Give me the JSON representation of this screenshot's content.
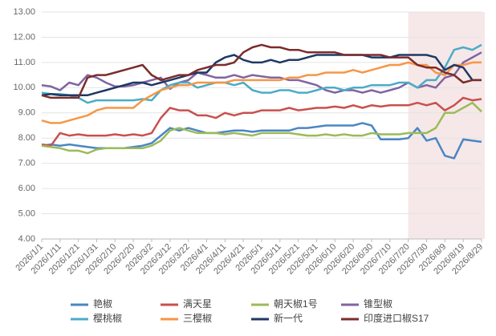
{
  "chart_data": {
    "type": "line",
    "categories": [
      "2026/1/1",
      null,
      "2026/1/11",
      null,
      "2026/1/21",
      null,
      "2026/1/31",
      null,
      "2026/2/10",
      null,
      "2026/2/20",
      null,
      "2026/3/2",
      null,
      "2026/3/12",
      null,
      "2026/3/22",
      null,
      "2026/4/1",
      null,
      "2026/4/11",
      null,
      "2026/4/21",
      null,
      "2026/5/1",
      null,
      "2026/5/11",
      null,
      "2026/5/21",
      null,
      "2026/5/31",
      null,
      "2026/6/10",
      null,
      "2026/6/20",
      null,
      "2026/6/30",
      null,
      "2026/7/10",
      null,
      "2026/7/20",
      null,
      "2026/7/30",
      null,
      "2026/8/9",
      null,
      "2026/8/19",
      null,
      "2026/8/29"
    ],
    "ylim": [
      4,
      13
    ],
    "yticks": [
      {
        "value": 4,
        "label": "4.00"
      },
      {
        "value": 5,
        "label": "5.00"
      },
      {
        "value": 6,
        "label": "6.00"
      },
      {
        "value": 7,
        "label": "7.00"
      },
      {
        "value": 8,
        "label": "8.00"
      },
      {
        "value": 9,
        "label": "9.00"
      },
      {
        "value": 10,
        "label": "10.00"
      },
      {
        "value": 11,
        "label": "11.00"
      },
      {
        "value": 12,
        "label": "12.00"
      },
      {
        "value": 13,
        "label": "13.00"
      }
    ],
    "grid": true,
    "legend": "bottom",
    "highlight_from": "2026/7/20",
    "highlight_color": "#f2dede",
    "series": [
      {
        "name": "艳椒",
        "color": "#4a86c5",
        "values": [
          7.7,
          7.75,
          7.7,
          7.75,
          7.7,
          7.65,
          7.6,
          7.6,
          7.6,
          7.6,
          7.65,
          7.7,
          7.8,
          8.1,
          8.4,
          8.3,
          8.4,
          8.3,
          8.2,
          8.2,
          8.25,
          8.3,
          8.3,
          8.25,
          8.3,
          8.3,
          8.3,
          8.3,
          8.4,
          8.4,
          8.45,
          8.5,
          8.5,
          8.5,
          8.5,
          8.6,
          8.5,
          7.95,
          7.95,
          7.95,
          8.0,
          8.4,
          7.9,
          8.0,
          7.3,
          7.2,
          7.95,
          7.9,
          7.85
        ]
      },
      {
        "name": "满天星",
        "color": "#c8504f",
        "values": [
          7.75,
          7.7,
          8.2,
          8.1,
          8.15,
          8.1,
          8.1,
          8.1,
          8.15,
          8.1,
          8.15,
          8.1,
          8.2,
          8.8,
          9.2,
          9.1,
          9.1,
          8.9,
          8.9,
          8.8,
          9.0,
          8.9,
          9.0,
          9.0,
          9.1,
          9.1,
          9.1,
          9.2,
          9.1,
          9.15,
          9.2,
          9.2,
          9.25,
          9.2,
          9.3,
          9.2,
          9.3,
          9.25,
          9.3,
          9.3,
          9.3,
          9.4,
          9.3,
          9.4,
          9.1,
          9.3,
          9.6,
          9.5,
          9.55
        ]
      },
      {
        "name": "朝天椒1号",
        "color": "#9bbb59",
        "values": [
          7.7,
          7.65,
          7.6,
          7.5,
          7.5,
          7.4,
          7.55,
          7.6,
          7.6,
          7.6,
          7.6,
          7.6,
          7.7,
          7.9,
          8.3,
          8.4,
          8.3,
          8.2,
          8.2,
          8.2,
          8.15,
          8.2,
          8.15,
          8.1,
          8.2,
          8.2,
          8.2,
          8.2,
          8.15,
          8.1,
          8.1,
          8.15,
          8.1,
          8.15,
          8.1,
          8.1,
          8.2,
          8.15,
          8.15,
          8.15,
          8.2,
          8.2,
          8.2,
          8.4,
          9.0,
          9.0,
          9.2,
          9.4,
          9.05
        ]
      },
      {
        "name": "锥型椒",
        "color": "#8064a2",
        "values": [
          10.1,
          10.05,
          9.9,
          10.2,
          10.1,
          10.5,
          10.4,
          10.2,
          10.05,
          10.05,
          10.1,
          10.2,
          10.3,
          10.4,
          9.95,
          10.2,
          10.3,
          10.6,
          10.5,
          10.4,
          10.4,
          10.5,
          10.4,
          10.5,
          10.45,
          10.4,
          10.4,
          10.3,
          10.3,
          10.2,
          10.1,
          9.9,
          9.8,
          9.9,
          9.9,
          9.8,
          9.9,
          9.8,
          9.9,
          10.0,
          10.2,
          10.0,
          10.1,
          10.0,
          10.4,
          10.5,
          11.0,
          11.2,
          11.4
        ]
      },
      {
        "name": "樱桃椒",
        "color": "#4bacc6",
        "values": [
          9.8,
          9.75,
          9.75,
          9.7,
          9.6,
          9.4,
          9.5,
          9.5,
          9.5,
          9.5,
          9.5,
          9.55,
          9.5,
          9.9,
          10.1,
          10.2,
          10.2,
          10.0,
          10.1,
          10.2,
          10.2,
          10.1,
          10.2,
          9.9,
          9.8,
          9.8,
          9.9,
          9.9,
          9.8,
          9.8,
          9.9,
          10.0,
          10.0,
          9.9,
          10.0,
          10.0,
          10.1,
          10.1,
          10.1,
          10.2,
          10.2,
          10.0,
          10.3,
          10.3,
          10.8,
          11.5,
          11.6,
          11.5,
          11.7
        ]
      },
      {
        "name": "三樱椒",
        "color": "#f79646",
        "values": [
          8.7,
          8.6,
          8.6,
          8.7,
          8.8,
          8.9,
          9.1,
          9.2,
          9.2,
          9.2,
          9.2,
          9.5,
          9.7,
          9.9,
          10.0,
          10.1,
          10.1,
          10.2,
          10.2,
          10.2,
          10.2,
          10.3,
          10.3,
          10.3,
          10.3,
          10.3,
          10.3,
          10.4,
          10.4,
          10.5,
          10.5,
          10.6,
          10.6,
          10.6,
          10.7,
          10.6,
          10.7,
          10.8,
          10.9,
          10.9,
          11.0,
          10.9,
          10.9,
          10.6,
          10.5,
          10.9,
          10.9,
          11.0,
          11.0
        ]
      },
      {
        "name": "新一代",
        "color": "#1f3864",
        "values": [
          9.7,
          9.75,
          9.7,
          9.7,
          9.7,
          9.7,
          9.8,
          9.9,
          10.0,
          10.1,
          10.2,
          10.2,
          10.1,
          10.2,
          10.3,
          10.4,
          10.5,
          10.6,
          10.6,
          11.0,
          11.2,
          11.3,
          11.1,
          11.0,
          11.0,
          11.1,
          11.0,
          11.1,
          11.1,
          11.2,
          11.3,
          11.3,
          11.3,
          11.3,
          11.3,
          11.3,
          11.2,
          11.2,
          11.2,
          11.3,
          11.3,
          11.3,
          11.3,
          11.2,
          10.7,
          10.9,
          10.8,
          10.3,
          10.3
        ]
      },
      {
        "name": "印度进口椒S17",
        "color": "#7b2c2c",
        "values": [
          9.7,
          9.6,
          9.6,
          9.6,
          9.6,
          10.4,
          10.5,
          10.5,
          10.6,
          10.7,
          10.8,
          10.9,
          10.5,
          10.3,
          10.4,
          10.5,
          10.5,
          10.7,
          10.8,
          10.9,
          10.9,
          11.0,
          11.4,
          11.6,
          11.7,
          11.6,
          11.6,
          11.5,
          11.5,
          11.4,
          11.4,
          11.4,
          11.4,
          11.3,
          11.3,
          11.3,
          11.3,
          11.3,
          11.2,
          11.2,
          11.2,
          10.9,
          10.8,
          10.8,
          10.6,
          10.5,
          10.2,
          10.3,
          10.3
        ]
      }
    ]
  }
}
